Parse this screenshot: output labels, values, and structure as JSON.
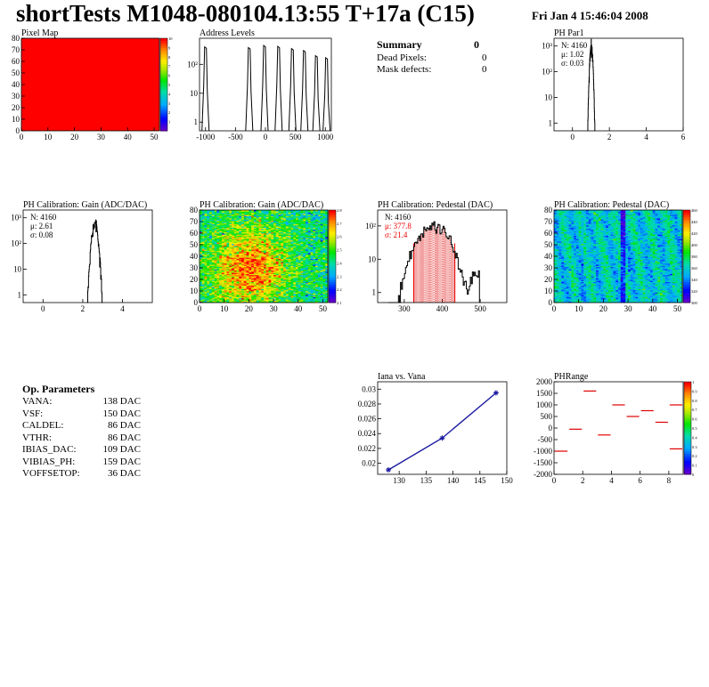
{
  "header": {
    "title": "shortTests M1048-080104.13:55 T+17a (C15)",
    "date": "Fri Jan  4 15:46:04 2008"
  },
  "summary": {
    "title": "Summary",
    "value": "0",
    "rows": [
      {
        "label": "Dead Pixels:",
        "value": "0"
      },
      {
        "label": "Mask defects:",
        "value": "0"
      }
    ]
  },
  "op_params": {
    "title": "Op. Parameters",
    "rows": [
      {
        "label": "VANA:",
        "value": "138 DAC"
      },
      {
        "label": "VSF:",
        "value": "150 DAC"
      },
      {
        "label": "CALDEL:",
        "value": "86 DAC"
      },
      {
        "label": "VTHR:",
        "value": "86 DAC"
      },
      {
        "label": "IBIAS_DAC:",
        "value": "109 DAC"
      },
      {
        "label": "VIBIAS_PH:",
        "value": "159 DAC"
      },
      {
        "label": "VOFFSETOP:",
        "value": "36 DAC"
      }
    ]
  },
  "chart_data": [
    {
      "id": "pixel-map",
      "type": "heatmap",
      "title": "Pixel Map",
      "xlim": [
        0,
        52
      ],
      "ylim": [
        0,
        80
      ],
      "xticks": [
        "0",
        "10",
        "20",
        "30",
        "40",
        "50"
      ],
      "yticks": [
        "0",
        "10",
        "20",
        "30",
        "40",
        "50",
        "60",
        "70",
        "80"
      ],
      "uniform_value": 10,
      "colorbar_ticks": [
        "1",
        "2",
        "3",
        "4",
        "5",
        "6",
        "7",
        "8",
        "9",
        "10"
      ],
      "colorbar_range": [
        0,
        10
      ]
    },
    {
      "id": "address-levels",
      "type": "bar",
      "title": "Address Levels",
      "xlim": [
        -1100,
        1100
      ],
      "ylog": true,
      "ylim": [
        0.5,
        800
      ],
      "xticks": [
        "-1000",
        "-500",
        "0",
        "500",
        "1000"
      ],
      "yticks": [
        "1",
        "10",
        "10²"
      ],
      "peaks": [
        {
          "x": -1000,
          "y": 400
        },
        {
          "x": -270,
          "y": 380
        },
        {
          "x": -15,
          "y": 450
        },
        {
          "x": 220,
          "y": 420
        },
        {
          "x": 450,
          "y": 350
        },
        {
          "x": 650,
          "y": 300
        },
        {
          "x": 850,
          "y": 200
        },
        {
          "x": 1020,
          "y": 170
        }
      ]
    },
    {
      "id": "ph-par1",
      "type": "bar",
      "title": "PH Par1",
      "xlim": [
        -1,
        6
      ],
      "ylog": true,
      "ylim": [
        0.5,
        2000
      ],
      "xticks": [
        "0",
        "2",
        "4",
        "6"
      ],
      "yticks": [
        "1",
        "10",
        "10²",
        "10³"
      ],
      "stats": [
        "N: 4160",
        "μ: 1.02",
        "σ: 0.03"
      ],
      "hist": {
        "center": 1.02,
        "sigma": 0.05,
        "peak": 1000
      }
    },
    {
      "id": "gain-1d",
      "type": "bar",
      "title": "PH Calibration: Gain (ADC/DAC)",
      "xlim": [
        -1,
        5.5
      ],
      "ylog": true,
      "ylim": [
        0.5,
        2000
      ],
      "xticks": [
        "0",
        "2",
        "4"
      ],
      "yticks": [
        "1",
        "10",
        "10²",
        "10³"
      ],
      "stats": [
        "N: 4160",
        "μ: 2.61",
        "σ: 0.08"
      ],
      "hist": {
        "center": 2.61,
        "sigma": 0.1,
        "peak": 600
      }
    },
    {
      "id": "gain-map",
      "type": "heatmap",
      "title": "PH Calibration: Gain (ADC/DAC)",
      "xlim": [
        0,
        52
      ],
      "ylim": [
        0,
        80
      ],
      "xticks": [
        "0",
        "10",
        "20",
        "30",
        "40",
        "50"
      ],
      "yticks": [
        "0",
        "10",
        "20",
        "30",
        "40",
        "50",
        "60",
        "70",
        "80"
      ],
      "colorbar_ticks": [
        "2.1",
        "2.2",
        "2.3",
        "2.4",
        "2.5",
        "2.6",
        "2.7",
        "2.8"
      ],
      "colorbar_range": [
        2.1,
        2.8
      ]
    },
    {
      "id": "pedestal-1d",
      "type": "bar",
      "title": "PH Calibration: Pedestal (DAC)",
      "xlim": [
        230,
        570
      ],
      "ylog": true,
      "ylim": [
        0.5,
        300
      ],
      "xticks": [
        "300",
        "400",
        "500"
      ],
      "yticks": [
        "1",
        "10",
        "10²"
      ],
      "stats": [
        "N: 4160",
        "μ: 377.8",
        "σ: 21.4"
      ],
      "fit_lines": [
        325,
        433
      ],
      "hist": {
        "center": 378,
        "sigma": 30,
        "peak": 100
      }
    },
    {
      "id": "pedestal-map",
      "type": "heatmap",
      "title": "PH Calibration: Pedestal (DAC)",
      "xlim": [
        0,
        52
      ],
      "ylim": [
        0,
        80
      ],
      "xticks": [
        "0",
        "10",
        "20",
        "30",
        "40",
        "50"
      ],
      "yticks": [
        "0",
        "10",
        "20",
        "30",
        "40",
        "50",
        "60",
        "70",
        "80"
      ],
      "colorbar_ticks": [
        "300",
        "320",
        "340",
        "360",
        "380",
        "400",
        "420",
        "440",
        "460"
      ],
      "colorbar_range": [
        300,
        460
      ]
    },
    {
      "id": "iana-vana",
      "type": "line",
      "title": "Iana vs. Vana",
      "xlim": [
        126,
        150
      ],
      "ylim": [
        0.0185,
        0.031
      ],
      "xticks": [
        "130",
        "135",
        "140",
        "145",
        "150"
      ],
      "yticks": [
        "0.02",
        "0.022",
        "0.024",
        "0.026",
        "0.028",
        "0.03"
      ],
      "x": [
        128,
        138,
        148
      ],
      "y": [
        0.0191,
        0.0234,
        0.0295
      ]
    },
    {
      "id": "ph-range",
      "type": "heatmap",
      "title": "PHRange",
      "xlim": [
        0,
        9
      ],
      "ylim": [
        -2000,
        2000
      ],
      "xticks": [
        "0",
        "2",
        "4",
        "6",
        "8"
      ],
      "yticks": [
        "-2000",
        "-1500",
        "-1000",
        "-500",
        "0",
        "500",
        "1000",
        "1500",
        "2000"
      ],
      "segments": [
        {
          "x0": 0,
          "x1": 1,
          "y": -1000
        },
        {
          "x0": 1,
          "x1": 2,
          "y": -50
        },
        {
          "x0": 2,
          "x1": 3,
          "y": 1600
        },
        {
          "x0": 3,
          "x1": 4,
          "y": -300
        },
        {
          "x0": 4,
          "x1": 5,
          "y": 1000
        },
        {
          "x0": 5,
          "x1": 6,
          "y": 500
        },
        {
          "x0": 6,
          "x1": 7,
          "y": 750
        },
        {
          "x0": 7,
          "x1": 8,
          "y": 250
        },
        {
          "x0": 8,
          "x1": 9,
          "y": 1000
        },
        {
          "x0": 8,
          "x1": 9,
          "y": -900
        }
      ],
      "colorbar_ticks": [
        "0",
        "0.1",
        "0.2",
        "0.3",
        "0.4",
        "0.5",
        "0.6",
        "0.7",
        "0.8",
        "0.9",
        "1"
      ],
      "colorbar_range": [
        0,
        1
      ]
    }
  ]
}
